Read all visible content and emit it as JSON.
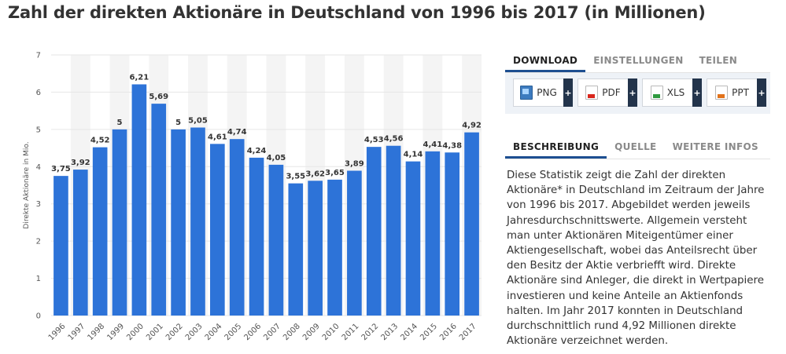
{
  "page": {
    "title": "Zahl der direkten Aktionäre in Deutschland von 1996 bis 2017 (in Millionen)"
  },
  "download": {
    "tabs": [
      "DOWNLOAD",
      "EINSTELLUNGEN",
      "TEILEN"
    ],
    "active_tab": 0,
    "buttons": [
      {
        "label": "PNG",
        "icon": "png-file-icon",
        "plus": "+"
      },
      {
        "label": "PDF",
        "icon": "pdf-file-icon",
        "plus": "+"
      },
      {
        "label": "XLS",
        "icon": "xls-file-icon",
        "plus": "+"
      },
      {
        "label": "PPT",
        "icon": "ppt-file-icon",
        "plus": "+"
      }
    ]
  },
  "description": {
    "tabs": [
      "BESCHREIBUNG",
      "QUELLE",
      "WEITERE INFOS"
    ],
    "active_tab": 0,
    "text": "Diese Statistik zeigt die Zahl der direkten Aktionäre* in Deutschland im Zeitraum der Jahre von 1996 bis 2017. Abgebildet werden jeweils Jahresdurchschnittswerte. Allgemein versteht man unter Aktionären Miteigentümer einer Aktiengesellschaft, wobei das Anteilsrecht über den Besitz der Aktie verbriefft wird. Direkte Aktionäre sind Anleger, die direkt in Wertpapiere investieren und keine Anteile an Aktienfonds halten. Im Jahr 2017 konnten in Deutschland durchschnittlich rund 4,92 Millionen direkte Aktionäre verzeichnet werden."
  },
  "colors": {
    "bar": "#2d73d8",
    "band": "#f4f4f4",
    "grid": "#e6e6e6",
    "accent": "#1d4f91"
  },
  "chart_data": {
    "type": "bar",
    "title": "Zahl der direkten Aktionäre in Deutschland von 1996 bis 2017 (in Millionen)",
    "xlabel": "",
    "ylabel": "Direkte Aktionäre in Mio.",
    "ylim": [
      0,
      7
    ],
    "yticks": [
      0,
      1,
      2,
      3,
      4,
      5,
      6,
      7
    ],
    "grid": true,
    "categories": [
      "1996",
      "1997",
      "1998",
      "1999",
      "2000",
      "2001",
      "2002",
      "2003",
      "2004",
      "2005",
      "2006",
      "2007",
      "2008",
      "2009",
      "2010",
      "2011",
      "2012",
      "2013",
      "2014",
      "2015",
      "2016",
      "2017"
    ],
    "values": [
      3.75,
      3.92,
      4.52,
      5,
      6.21,
      5.69,
      5,
      5.05,
      4.61,
      4.74,
      4.24,
      4.05,
      3.55,
      3.62,
      3.65,
      3.89,
      4.53,
      4.56,
      4.14,
      4.41,
      4.38,
      4.92
    ],
    "value_labels": [
      "3,75",
      "3,92",
      "4,52",
      "5",
      "6,21",
      "5,69",
      "5",
      "5,05",
      "4,61",
      "4,74",
      "4,24",
      "4,05",
      "3,55",
      "3,62",
      "3,65",
      "3,89",
      "4,53",
      "4,56",
      "4,14",
      "4,41",
      "4,38",
      "4,92"
    ]
  }
}
